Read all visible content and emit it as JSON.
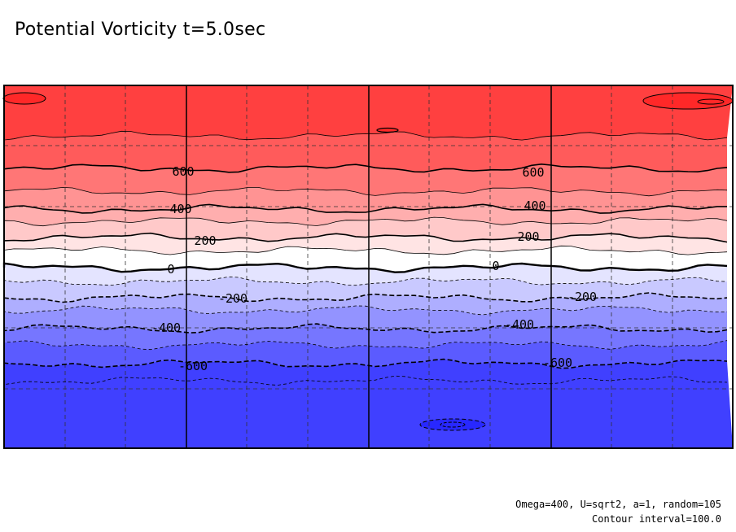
{
  "title": "Potential Vorticity t=5.0sec",
  "footer": {
    "params": "Omega=400, U=sqrt2, a=1, random=105",
    "interval": "Contour interval=100.0"
  },
  "chart_data": {
    "type": "contour",
    "title": "Potential Vorticity t=5.0sec",
    "contour_interval": 100,
    "levels": [
      800,
      700,
      600,
      500,
      400,
      300,
      200,
      100,
      0,
      -100,
      -200,
      -300,
      -400,
      -500,
      -600,
      -700,
      -800
    ],
    "fill_colors": [
      "#ff4040",
      "#ff5b5b",
      "#ff7676",
      "#ff9393",
      "#ffaeae",
      "#ffc9c9",
      "#ffe4e4",
      "#ffffff",
      "#e4e4ff",
      "#c9c9ff",
      "#aeaeff",
      "#9393ff",
      "#7676ff",
      "#5b5bff",
      "#4040ff"
    ],
    "contour_labels": [
      {
        "text": "600",
        "level": 600
      },
      {
        "text": "600",
        "level": 600
      },
      {
        "text": "400",
        "level": 400
      },
      {
        "text": "400",
        "level": 400
      },
      {
        "text": "200",
        "level": 200
      },
      {
        "text": "200",
        "level": 200
      },
      {
        "text": "0",
        "level": 0
      },
      {
        "text": "0",
        "level": 0
      },
      {
        "text": "-200",
        "level": -200
      },
      {
        "text": "-200",
        "level": -200
      },
      {
        "text": "-400",
        "level": -400
      },
      {
        "text": "-400",
        "level": -400
      },
      {
        "text": "-600",
        "level": -600
      },
      {
        "text": "-600",
        "level": -600
      }
    ],
    "grid": "dashed",
    "negative_contours": "dashed"
  }
}
